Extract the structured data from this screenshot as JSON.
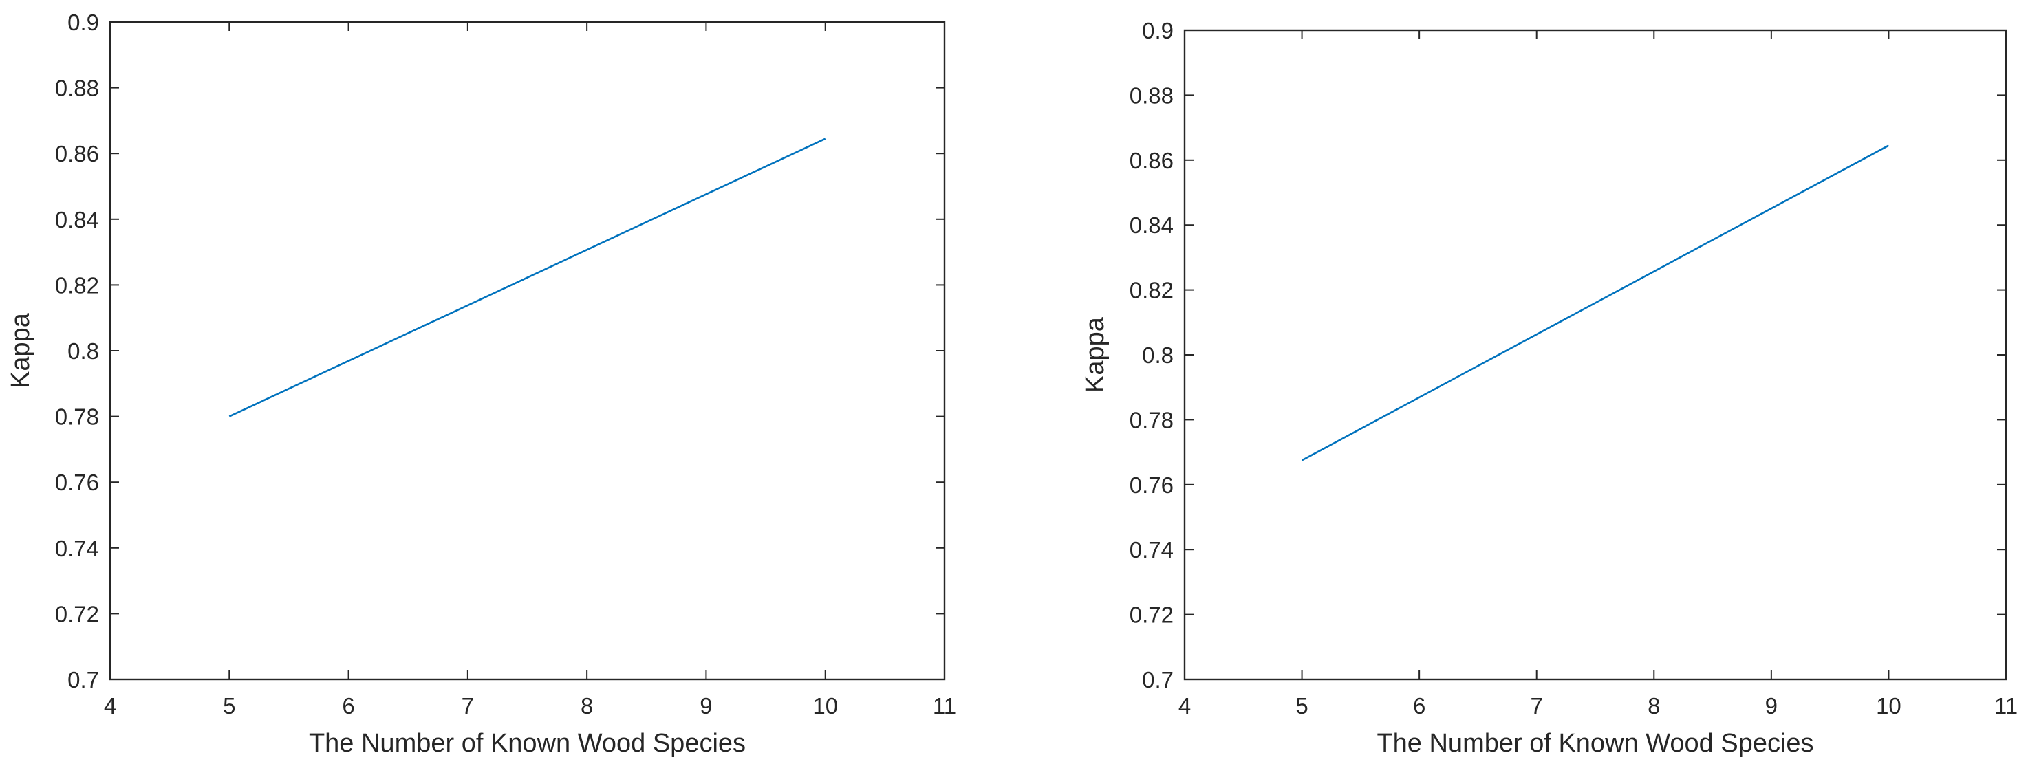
{
  "chart_data": [
    {
      "type": "line",
      "title": "",
      "xlabel": "The Number of Known Wood Species",
      "ylabel": "Kappa",
      "xlim": [
        4,
        11
      ],
      "ylim": [
        0.7,
        0.9
      ],
      "xticks": [
        "4",
        "5",
        "6",
        "7",
        "8",
        "9",
        "10",
        "11"
      ],
      "yticks": [
        "0.7",
        "0.72",
        "0.74",
        "0.76",
        "0.78",
        "0.8",
        "0.82",
        "0.84",
        "0.86",
        "0.88",
        "0.9"
      ],
      "grid": false,
      "series": [
        {
          "color": "#0072BD",
          "x": [
            5,
            10
          ],
          "y": [
            0.78,
            0.8645
          ]
        }
      ]
    },
    {
      "type": "line",
      "title": "",
      "xlabel": "The Number of Known Wood Species",
      "ylabel": "Kappa",
      "xlim": [
        4,
        11
      ],
      "ylim": [
        0.7,
        0.9
      ],
      "xticks": [
        "4",
        "5",
        "6",
        "7",
        "8",
        "9",
        "10",
        "11"
      ],
      "yticks": [
        "0.7",
        "0.72",
        "0.74",
        "0.76",
        "0.78",
        "0.8",
        "0.82",
        "0.84",
        "0.86",
        "0.88",
        "0.9"
      ],
      "grid": false,
      "series": [
        {
          "color": "#0072BD",
          "x": [
            5,
            10
          ],
          "y": [
            0.7675,
            0.8645
          ]
        }
      ]
    }
  ]
}
